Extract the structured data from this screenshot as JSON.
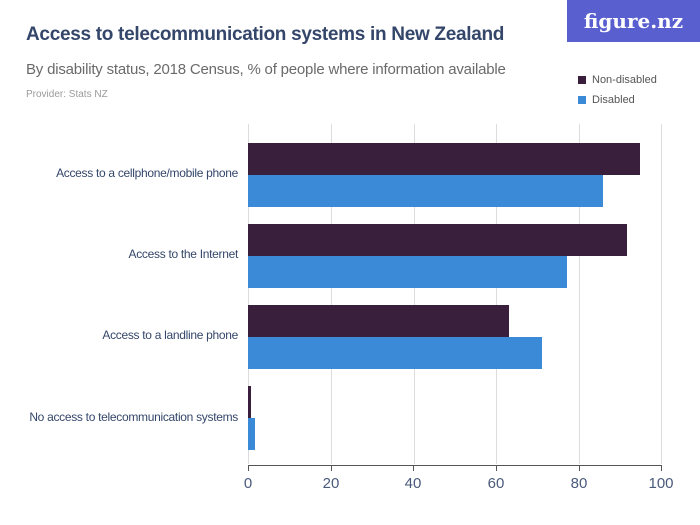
{
  "header": {
    "title": "Access to telecommunication systems in New Zealand",
    "subtitle": "By disability status, 2018 Census, % of people where information available",
    "provider": "Provider: Stats NZ",
    "logo": "figure.nz"
  },
  "legend": [
    {
      "label": "Non-disabled",
      "color": "#3a1f3d"
    },
    {
      "label": "Disabled",
      "color": "#3b8ad8"
    }
  ],
  "axis": {
    "ticks": [
      "0",
      "20",
      "40",
      "60",
      "80",
      "100"
    ]
  },
  "chart_data": {
    "type": "bar",
    "orientation": "horizontal",
    "title": "Access to telecommunication systems in New Zealand",
    "subtitle": "By disability status, 2018 Census, % of people where information available",
    "xlabel": "",
    "ylabel": "",
    "xlim": [
      0,
      100
    ],
    "grid": true,
    "legend_position": "top-right",
    "categories": [
      "Access to a cellphone/mobile phone",
      "Access to the Internet",
      "Access to a landline phone",
      "No access to telecommunication systems"
    ],
    "series": [
      {
        "name": "Non-disabled",
        "color": "#3a1f3d",
        "values": [
          94.7,
          91.5,
          63.0,
          0.7
        ]
      },
      {
        "name": "Disabled",
        "color": "#3b8ad8",
        "values": [
          85.8,
          77.1,
          71.0,
          1.7
        ]
      }
    ]
  }
}
